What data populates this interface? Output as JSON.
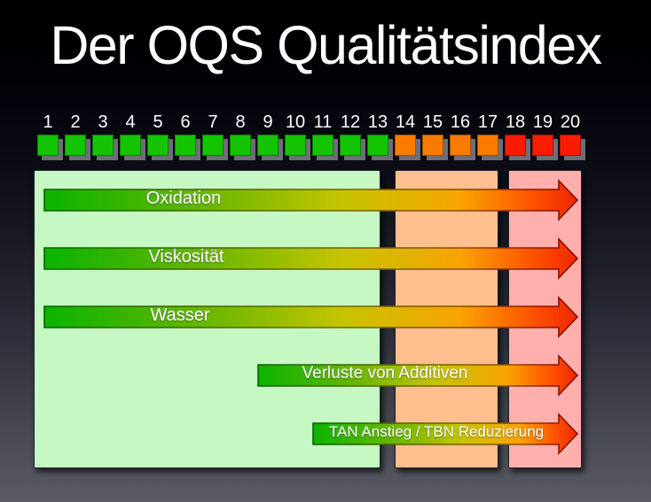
{
  "title": "Der OQS Qualitätsindex",
  "scale": {
    "min": 1,
    "max": 20,
    "segments": [
      {
        "name": "good",
        "from": 1,
        "to": 13,
        "square_color": "#14c400",
        "zone_color": "#c5f8c2"
      },
      {
        "name": "warning",
        "from": 14,
        "to": 17,
        "square_color": "#f97b00",
        "zone_color": "#fcbf8d"
      },
      {
        "name": "critical",
        "from": 18,
        "to": 20,
        "square_color": "#fb1c00",
        "zone_color": "#ffb0ad"
      }
    ]
  },
  "arrows": [
    {
      "label": "Oxidation",
      "start_index": 1
    },
    {
      "label": "Viskosität",
      "start_index": 1
    },
    {
      "label": "Wasser",
      "start_index": 1
    },
    {
      "label": "Verluste von Additiven",
      "start_index": 9
    },
    {
      "label": "TAN Anstieg / TBN Reduzierung",
      "start_index": 11
    }
  ],
  "arrow_gradient": {
    "fill": [
      "#0ab400",
      "#5fb600",
      "#c6c400",
      "#f9a300",
      "#fe5000",
      "#ee2600"
    ],
    "stroke": [
      "#0a6000",
      "#466000",
      "#6d6600",
      "#874e00",
      "#8c1800",
      "#7e0e00"
    ]
  }
}
